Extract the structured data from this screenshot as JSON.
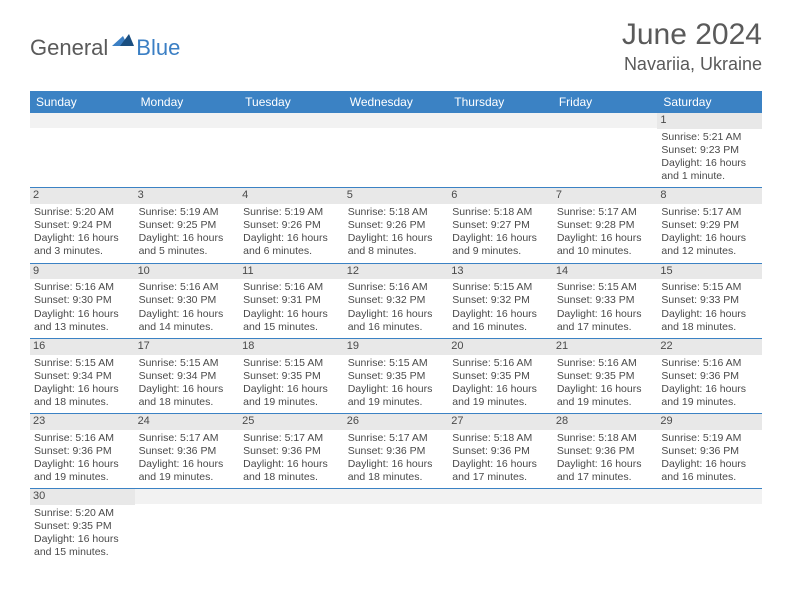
{
  "logo": {
    "dark": "General",
    "blue": "Blue"
  },
  "title": {
    "month": "June 2024",
    "location": "Navariia, Ukraine"
  },
  "colors": {
    "header_bg": "#3b82c4",
    "header_text": "#ffffff",
    "daynum_bg": "#e8e8e8",
    "border": "#3b82c4",
    "text": "#4a4a4a",
    "logo_dark": "#5a5a5a",
    "logo_blue": "#3b7fc4"
  },
  "day_names": [
    "Sunday",
    "Monday",
    "Tuesday",
    "Wednesday",
    "Thursday",
    "Friday",
    "Saturday"
  ],
  "weeks": [
    [
      null,
      null,
      null,
      null,
      null,
      null,
      {
        "n": "1",
        "sr": "Sunrise: 5:21 AM",
        "ss": "Sunset: 9:23 PM",
        "dl1": "Daylight: 16 hours",
        "dl2": "and 1 minute."
      }
    ],
    [
      {
        "n": "2",
        "sr": "Sunrise: 5:20 AM",
        "ss": "Sunset: 9:24 PM",
        "dl1": "Daylight: 16 hours",
        "dl2": "and 3 minutes."
      },
      {
        "n": "3",
        "sr": "Sunrise: 5:19 AM",
        "ss": "Sunset: 9:25 PM",
        "dl1": "Daylight: 16 hours",
        "dl2": "and 5 minutes."
      },
      {
        "n": "4",
        "sr": "Sunrise: 5:19 AM",
        "ss": "Sunset: 9:26 PM",
        "dl1": "Daylight: 16 hours",
        "dl2": "and 6 minutes."
      },
      {
        "n": "5",
        "sr": "Sunrise: 5:18 AM",
        "ss": "Sunset: 9:26 PM",
        "dl1": "Daylight: 16 hours",
        "dl2": "and 8 minutes."
      },
      {
        "n": "6",
        "sr": "Sunrise: 5:18 AM",
        "ss": "Sunset: 9:27 PM",
        "dl1": "Daylight: 16 hours",
        "dl2": "and 9 minutes."
      },
      {
        "n": "7",
        "sr": "Sunrise: 5:17 AM",
        "ss": "Sunset: 9:28 PM",
        "dl1": "Daylight: 16 hours",
        "dl2": "and 10 minutes."
      },
      {
        "n": "8",
        "sr": "Sunrise: 5:17 AM",
        "ss": "Sunset: 9:29 PM",
        "dl1": "Daylight: 16 hours",
        "dl2": "and 12 minutes."
      }
    ],
    [
      {
        "n": "9",
        "sr": "Sunrise: 5:16 AM",
        "ss": "Sunset: 9:30 PM",
        "dl1": "Daylight: 16 hours",
        "dl2": "and 13 minutes."
      },
      {
        "n": "10",
        "sr": "Sunrise: 5:16 AM",
        "ss": "Sunset: 9:30 PM",
        "dl1": "Daylight: 16 hours",
        "dl2": "and 14 minutes."
      },
      {
        "n": "11",
        "sr": "Sunrise: 5:16 AM",
        "ss": "Sunset: 9:31 PM",
        "dl1": "Daylight: 16 hours",
        "dl2": "and 15 minutes."
      },
      {
        "n": "12",
        "sr": "Sunrise: 5:16 AM",
        "ss": "Sunset: 9:32 PM",
        "dl1": "Daylight: 16 hours",
        "dl2": "and 16 minutes."
      },
      {
        "n": "13",
        "sr": "Sunrise: 5:15 AM",
        "ss": "Sunset: 9:32 PM",
        "dl1": "Daylight: 16 hours",
        "dl2": "and 16 minutes."
      },
      {
        "n": "14",
        "sr": "Sunrise: 5:15 AM",
        "ss": "Sunset: 9:33 PM",
        "dl1": "Daylight: 16 hours",
        "dl2": "and 17 minutes."
      },
      {
        "n": "15",
        "sr": "Sunrise: 5:15 AM",
        "ss": "Sunset: 9:33 PM",
        "dl1": "Daylight: 16 hours",
        "dl2": "and 18 minutes."
      }
    ],
    [
      {
        "n": "16",
        "sr": "Sunrise: 5:15 AM",
        "ss": "Sunset: 9:34 PM",
        "dl1": "Daylight: 16 hours",
        "dl2": "and 18 minutes."
      },
      {
        "n": "17",
        "sr": "Sunrise: 5:15 AM",
        "ss": "Sunset: 9:34 PM",
        "dl1": "Daylight: 16 hours",
        "dl2": "and 18 minutes."
      },
      {
        "n": "18",
        "sr": "Sunrise: 5:15 AM",
        "ss": "Sunset: 9:35 PM",
        "dl1": "Daylight: 16 hours",
        "dl2": "and 19 minutes."
      },
      {
        "n": "19",
        "sr": "Sunrise: 5:15 AM",
        "ss": "Sunset: 9:35 PM",
        "dl1": "Daylight: 16 hours",
        "dl2": "and 19 minutes."
      },
      {
        "n": "20",
        "sr": "Sunrise: 5:16 AM",
        "ss": "Sunset: 9:35 PM",
        "dl1": "Daylight: 16 hours",
        "dl2": "and 19 minutes."
      },
      {
        "n": "21",
        "sr": "Sunrise: 5:16 AM",
        "ss": "Sunset: 9:35 PM",
        "dl1": "Daylight: 16 hours",
        "dl2": "and 19 minutes."
      },
      {
        "n": "22",
        "sr": "Sunrise: 5:16 AM",
        "ss": "Sunset: 9:36 PM",
        "dl1": "Daylight: 16 hours",
        "dl2": "and 19 minutes."
      }
    ],
    [
      {
        "n": "23",
        "sr": "Sunrise: 5:16 AM",
        "ss": "Sunset: 9:36 PM",
        "dl1": "Daylight: 16 hours",
        "dl2": "and 19 minutes."
      },
      {
        "n": "24",
        "sr": "Sunrise: 5:17 AM",
        "ss": "Sunset: 9:36 PM",
        "dl1": "Daylight: 16 hours",
        "dl2": "and 19 minutes."
      },
      {
        "n": "25",
        "sr": "Sunrise: 5:17 AM",
        "ss": "Sunset: 9:36 PM",
        "dl1": "Daylight: 16 hours",
        "dl2": "and 18 minutes."
      },
      {
        "n": "26",
        "sr": "Sunrise: 5:17 AM",
        "ss": "Sunset: 9:36 PM",
        "dl1": "Daylight: 16 hours",
        "dl2": "and 18 minutes."
      },
      {
        "n": "27",
        "sr": "Sunrise: 5:18 AM",
        "ss": "Sunset: 9:36 PM",
        "dl1": "Daylight: 16 hours",
        "dl2": "and 17 minutes."
      },
      {
        "n": "28",
        "sr": "Sunrise: 5:18 AM",
        "ss": "Sunset: 9:36 PM",
        "dl1": "Daylight: 16 hours",
        "dl2": "and 17 minutes."
      },
      {
        "n": "29",
        "sr": "Sunrise: 5:19 AM",
        "ss": "Sunset: 9:36 PM",
        "dl1": "Daylight: 16 hours",
        "dl2": "and 16 minutes."
      }
    ],
    [
      {
        "n": "30",
        "sr": "Sunrise: 5:20 AM",
        "ss": "Sunset: 9:35 PM",
        "dl1": "Daylight: 16 hours",
        "dl2": "and 15 minutes."
      },
      null,
      null,
      null,
      null,
      null,
      null
    ]
  ]
}
